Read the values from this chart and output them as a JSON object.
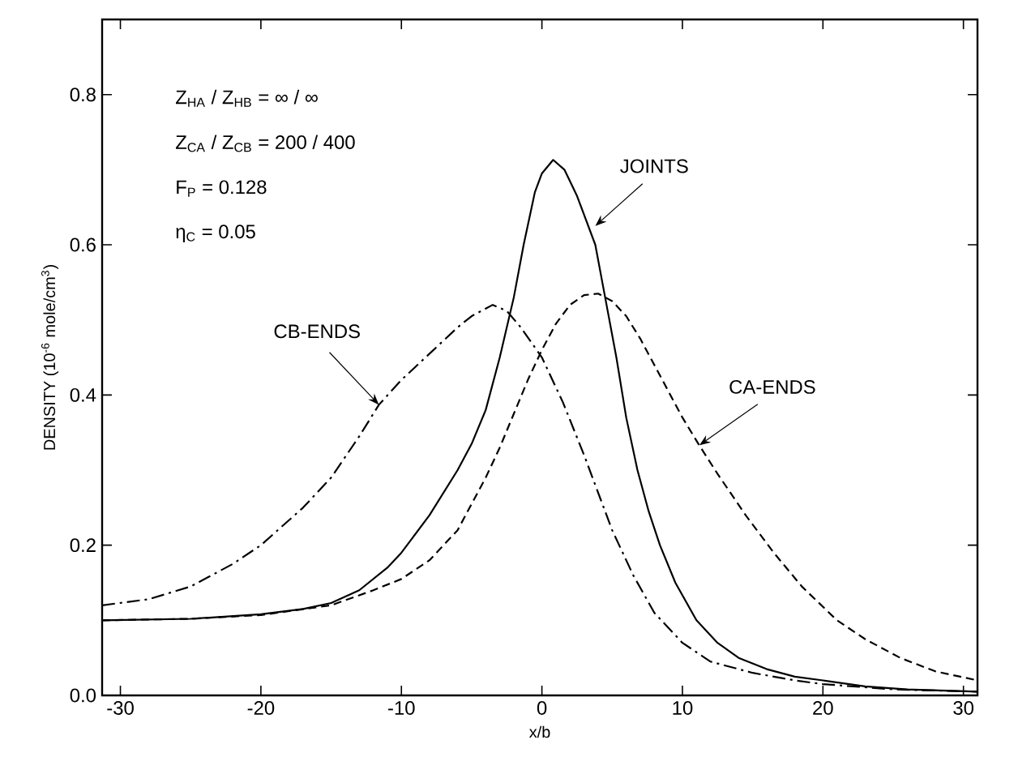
{
  "chart_data": {
    "type": "line",
    "xlabel": "x/b",
    "ylabel": "DENSITY (10$^{-6}$ mole/cm$^{3}$)",
    "xlim": [
      -31.3,
      31
    ],
    "ylim": [
      0,
      0.9
    ],
    "xticks": [
      -30,
      -20,
      -10,
      0,
      10,
      20,
      30
    ],
    "yticks": [
      {
        "value": 0,
        "label": "0.0"
      },
      {
        "value": 0.2,
        "label": "0.2"
      },
      {
        "value": 0.4,
        "label": "0.4"
      },
      {
        "value": 0.6,
        "label": "0.6"
      },
      {
        "value": 0.8,
        "label": "0.8"
      }
    ],
    "grid": false,
    "marker": "none",
    "series": [
      {
        "color": "#000000",
        "line_style": "solid",
        "x": [
          -31.3,
          -25,
          -20,
          -17,
          -15,
          -13,
          -11,
          -10,
          -8,
          -6,
          -5,
          -4,
          -3,
          -2,
          -1.3,
          -0.5,
          0,
          0.8,
          1.6,
          2.5,
          3.8,
          4.5,
          5.3,
          6,
          6.8,
          7.6,
          8.4,
          9.5,
          11,
          12.5,
          14,
          16,
          18,
          20,
          23,
          26,
          31
        ],
        "values": [
          0.1,
          0.102,
          0.108,
          0.115,
          0.123,
          0.14,
          0.17,
          0.19,
          0.24,
          0.3,
          0.335,
          0.38,
          0.45,
          0.53,
          0.6,
          0.67,
          0.695,
          0.713,
          0.7,
          0.665,
          0.6,
          0.53,
          0.45,
          0.37,
          0.3,
          0.245,
          0.2,
          0.15,
          0.1,
          0.07,
          0.05,
          0.035,
          0.025,
          0.02,
          0.012,
          0.008,
          0.005
        ]
      },
      {
        "color": "#000000",
        "line_style": "dashed",
        "x": [
          -31.3,
          -25,
          -20,
          -15,
          -12,
          -10,
          -8,
          -6,
          -5,
          -4,
          -3,
          -2,
          -1,
          0,
          1,
          2,
          3,
          4,
          5,
          6,
          7,
          8,
          9,
          10,
          11.2,
          12.5,
          14.5,
          16.5,
          18.5,
          21,
          23,
          25.5,
          28,
          31
        ],
        "values": [
          0.1,
          0.102,
          0.107,
          0.12,
          0.14,
          0.155,
          0.18,
          0.22,
          0.255,
          0.29,
          0.33,
          0.375,
          0.42,
          0.46,
          0.495,
          0.52,
          0.533,
          0.535,
          0.525,
          0.505,
          0.475,
          0.44,
          0.405,
          0.37,
          0.333,
          0.295,
          0.24,
          0.19,
          0.145,
          0.1,
          0.075,
          0.05,
          0.032,
          0.02
        ]
      },
      {
        "color": "#000000",
        "line_style": "dashdot",
        "x": [
          -31.3,
          -28,
          -25,
          -22,
          -20,
          -17,
          -15,
          -13,
          -11.6,
          -10,
          -8,
          -6,
          -5,
          -4,
          -3.5,
          -2.5,
          -1.5,
          0,
          1.5,
          3,
          5,
          6.5,
          8,
          10,
          12,
          15,
          18,
          20,
          25,
          31
        ],
        "values": [
          0.12,
          0.128,
          0.145,
          0.175,
          0.2,
          0.25,
          0.29,
          0.345,
          0.387,
          0.42,
          0.455,
          0.49,
          0.505,
          0.515,
          0.52,
          0.512,
          0.49,
          0.45,
          0.39,
          0.32,
          0.22,
          0.16,
          0.11,
          0.07,
          0.045,
          0.03,
          0.02,
          0.015,
          0.008,
          0.005
        ]
      }
    ],
    "annotations": [
      "Z$_{HA}$ / Z$_{HB}$ = ∞ / ∞",
      "Z$_{CA}$ / Z$_{CB}$ = 200 / 400",
      "F$_{P}$ = 0.128",
      "η$_{C}$ = 0.05",
      {
        "text": "JOINTS",
        "x": 3.8,
        "y": 0.625
      },
      {
        "text": "CA-ENDS",
        "x": 11.2,
        "y": 0.333
      },
      {
        "text": "CB-ENDS",
        "x": -11.6,
        "y": 0.387
      }
    ]
  }
}
